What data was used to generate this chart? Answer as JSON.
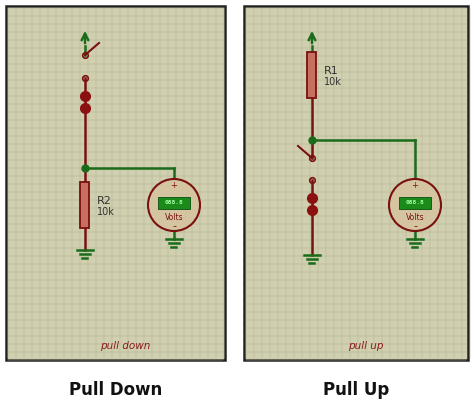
{
  "bg_color": "#c8c8a0",
  "grid_color": "#b0b090",
  "border_color": "#222222",
  "wire_color_green": "#1a6b1a",
  "wire_color_red": "#7a1010",
  "resistor_fill": "#c87060",
  "resistor_border": "#7a1010",
  "meter_circle_color": "#d4c4a0",
  "meter_border_color": "#7a1010",
  "meter_display_color": "#1a8b1a",
  "meter_text_color": "#7a1010",
  "led_color": "#8b1010",
  "ground_color": "#1a6b1a",
  "label_color": "#8b1a1a",
  "title_color": "#111111",
  "panel_bg": "#d0d0b0",
  "overall_bg": "#ffffff",
  "title_left": "Pull Down",
  "title_right": "Pull Up",
  "label_left": "pull down",
  "label_right": "pull up",
  "r_left_label": "R2",
  "r_left_val": "10k",
  "r_right_label": "R1",
  "r_right_val": "10k"
}
